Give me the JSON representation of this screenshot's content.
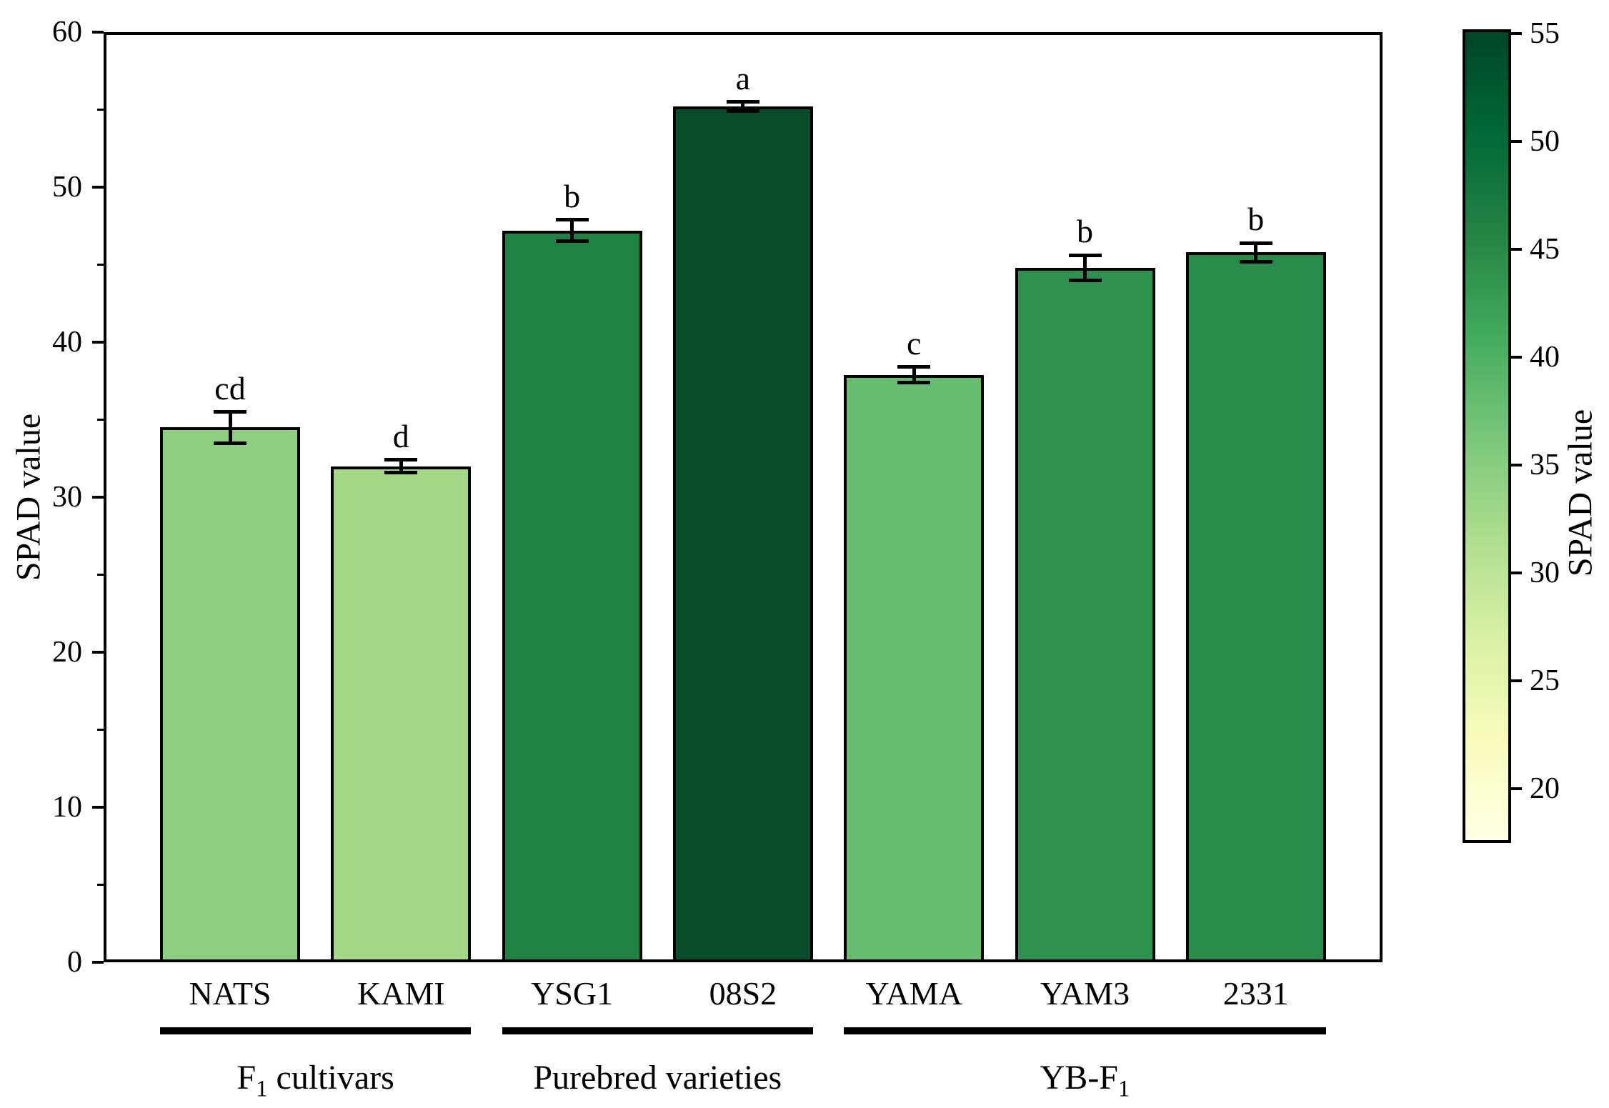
{
  "chart_data": {
    "type": "bar",
    "title": "",
    "xlabel": "",
    "ylabel": "SPAD value",
    "ylim": [
      0,
      60
    ],
    "yticks_major": [
      0,
      10,
      20,
      30,
      40,
      50,
      60
    ],
    "yticks_minor": [
      5,
      15,
      25,
      35,
      45,
      55
    ],
    "grid": false,
    "legend": false,
    "categories": [
      "NATS",
      "KAMI",
      "YSG1",
      "08S2",
      "YAMA",
      "YAM3",
      "2331"
    ],
    "values": [
      34.5,
      32.0,
      47.2,
      55.2,
      37.9,
      44.8,
      45.8
    ],
    "errors": [
      1.0,
      0.4,
      0.7,
      0.3,
      0.5,
      0.8,
      0.6
    ],
    "sig_letters": [
      "cd",
      "d",
      "b",
      "a",
      "c",
      "b",
      "b"
    ],
    "bar_colors": [
      "#8dce81",
      "#a5d884",
      "#1e8243",
      "#074d2b",
      "#66bd70",
      "#2e9150",
      "#278c4a"
    ],
    "groups": [
      {
        "label_pre": "F",
        "label_sub": "1",
        "label_post": " cultivars",
        "start": 0,
        "end": 1
      },
      {
        "label_pre": "Purebred varieties",
        "label_sub": "",
        "label_post": "",
        "start": 2,
        "end": 3
      },
      {
        "label_pre": "YB-F",
        "label_sub": "1",
        "label_post": "",
        "start": 4,
        "end": 6
      }
    ],
    "colorbar": {
      "label": "SPAD value",
      "vmin": 17.5,
      "vmax": 55.2,
      "ticks": [
        20,
        25,
        30,
        35,
        40,
        45,
        50,
        55
      ],
      "gradient_stops_bottom_to_top": [
        "#ffffe5",
        "#f7fcb9",
        "#d9f0a3",
        "#addd8e",
        "#78c679",
        "#41ab5d",
        "#238443",
        "#006837",
        "#004529"
      ]
    }
  }
}
